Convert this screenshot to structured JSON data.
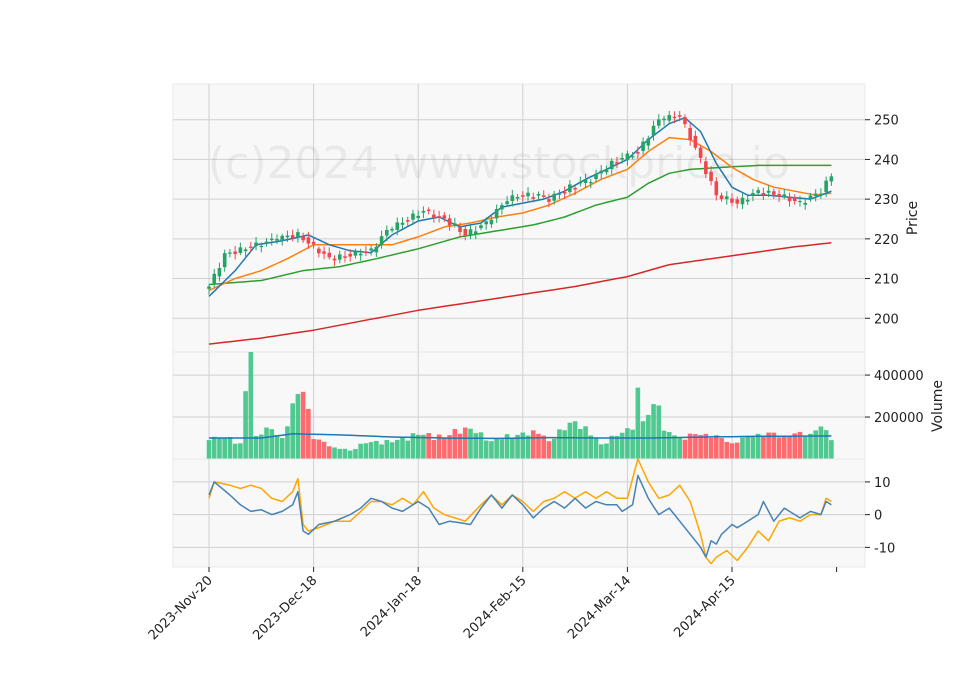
{
  "chart_data": {
    "type": "candlestick",
    "watermark": "(c)2024 www.stockprice.io",
    "x_tick_labels": [
      "2023-Nov-20",
      "2023-Dec-18",
      "2024-Jan-18",
      "2024-Feb-15",
      "2024-Mar-14",
      "2024-Apr-15"
    ],
    "x_tick_index": [
      0,
      20,
      40,
      60,
      80,
      100
    ],
    "num_bars": 120,
    "grid": true,
    "colors": {
      "up": "#26a269",
      "down": "#f0474e",
      "ma_short": "#1f77b4",
      "ma_mid": "#ff7f0e",
      "ma_long": "#2ca02c",
      "ma_200": "#d62728",
      "volume_ma": "#1f77b4",
      "osc_fast": "#4682b4",
      "osc_slow": "#ffa500",
      "panel_bg": "#f8f8f8",
      "grid": "#d0d0d0"
    },
    "price_panel": {
      "ylabel": "Price",
      "ylim": [
        191.5,
        259
      ],
      "yticks": [
        200,
        210,
        220,
        230,
        240,
        250
      ],
      "anchors": {
        "close": [
          [
            0,
            208
          ],
          [
            3,
            216
          ],
          [
            8,
            218
          ],
          [
            13,
            220
          ],
          [
            17,
            221
          ],
          [
            20,
            218
          ],
          [
            23,
            215
          ],
          [
            27,
            216
          ],
          [
            31,
            217
          ],
          [
            34,
            222
          ],
          [
            38,
            225
          ],
          [
            41,
            227
          ],
          [
            45,
            225
          ],
          [
            49,
            221
          ],
          [
            53,
            224
          ],
          [
            57,
            230
          ],
          [
            61,
            231
          ],
          [
            65,
            230
          ],
          [
            69,
            233
          ],
          [
            73,
            235
          ],
          [
            77,
            239
          ],
          [
            82,
            242
          ],
          [
            86,
            250
          ],
          [
            90,
            251
          ],
          [
            94,
            240
          ],
          [
            97,
            231
          ],
          [
            101,
            229
          ],
          [
            105,
            232
          ],
          [
            109,
            231
          ],
          [
            113,
            229
          ],
          [
            117,
            232
          ],
          [
            119,
            236
          ]
        ],
        "ma_short": [
          [
            0,
            205.5
          ],
          [
            5,
            212
          ],
          [
            9,
            218.5
          ],
          [
            14,
            219.5
          ],
          [
            19,
            221
          ],
          [
            23,
            218.5
          ],
          [
            27,
            217
          ],
          [
            31,
            216.5
          ],
          [
            35,
            221
          ],
          [
            40,
            224.5
          ],
          [
            44,
            225.5
          ],
          [
            48,
            223
          ],
          [
            52,
            224
          ],
          [
            56,
            228
          ],
          [
            60,
            229
          ],
          [
            64,
            230
          ],
          [
            68,
            232
          ],
          [
            72,
            235
          ],
          [
            76,
            237.5
          ],
          [
            80,
            240
          ],
          [
            84,
            245
          ],
          [
            88,
            249
          ],
          [
            91,
            250.5
          ],
          [
            94,
            247
          ],
          [
            97,
            239
          ],
          [
            100,
            233
          ],
          [
            103,
            231
          ],
          [
            107,
            231
          ],
          [
            111,
            230.5
          ],
          [
            115,
            230
          ],
          [
            119,
            232
          ]
        ],
        "ma_mid": [
          [
            0,
            207
          ],
          [
            5,
            210
          ],
          [
            10,
            212
          ],
          [
            15,
            215
          ],
          [
            20,
            218.5
          ],
          [
            25,
            218.5
          ],
          [
            30,
            218.5
          ],
          [
            35,
            218.5
          ],
          [
            40,
            220.5
          ],
          [
            45,
            223
          ],
          [
            50,
            224
          ],
          [
            55,
            225.5
          ],
          [
            60,
            226.5
          ],
          [
            65,
            228.5
          ],
          [
            70,
            231.5
          ],
          [
            75,
            235
          ],
          [
            80,
            237.5
          ],
          [
            84,
            242
          ],
          [
            88,
            245.5
          ],
          [
            92,
            245
          ],
          [
            96,
            242
          ],
          [
            100,
            238
          ],
          [
            104,
            235
          ],
          [
            108,
            233
          ],
          [
            112,
            232
          ],
          [
            116,
            231
          ],
          [
            119,
            231.5
          ]
        ],
        "ma_long": [
          [
            0,
            208.5
          ],
          [
            10,
            209.5
          ],
          [
            18,
            212
          ],
          [
            25,
            213
          ],
          [
            32,
            215
          ],
          [
            40,
            217.5
          ],
          [
            48,
            220.5
          ],
          [
            55,
            222
          ],
          [
            62,
            223.5
          ],
          [
            68,
            225.5
          ],
          [
            74,
            228.5
          ],
          [
            80,
            230.5
          ],
          [
            84,
            234
          ],
          [
            88,
            236.5
          ],
          [
            92,
            237.5
          ],
          [
            98,
            238
          ],
          [
            105,
            238.5
          ],
          [
            112,
            238.5
          ],
          [
            119,
            238.5
          ]
        ],
        "ma_200": [
          [
            0,
            193.5
          ],
          [
            10,
            195
          ],
          [
            20,
            197
          ],
          [
            30,
            199.5
          ],
          [
            40,
            202
          ],
          [
            50,
            204
          ],
          [
            60,
            206
          ],
          [
            70,
            208
          ],
          [
            80,
            210.5
          ],
          [
            88,
            213.5
          ],
          [
            96,
            215
          ],
          [
            104,
            216.5
          ],
          [
            112,
            218
          ],
          [
            119,
            219
          ]
        ]
      }
    },
    "volume_panel": {
      "ylabel": "Volume",
      "ylim": [
        0,
        510000
      ],
      "yticks": [
        200000,
        400000
      ],
      "ytick_labels": [
        "200000",
        "400000"
      ],
      "anchors": {
        "volume": [
          [
            0,
            90000
          ],
          [
            3,
            100000
          ],
          [
            6,
            75000
          ],
          [
            8,
            540000
          ],
          [
            9,
            110000
          ],
          [
            11,
            150000
          ],
          [
            14,
            100000
          ],
          [
            17,
            310000
          ],
          [
            18,
            320000
          ],
          [
            20,
            95000
          ],
          [
            24,
            55000
          ],
          [
            27,
            40000
          ],
          [
            30,
            75000
          ],
          [
            35,
            80000
          ],
          [
            40,
            115000
          ],
          [
            45,
            100000
          ],
          [
            49,
            150000
          ],
          [
            54,
            85000
          ],
          [
            59,
            115000
          ],
          [
            63,
            120000
          ],
          [
            65,
            85000
          ],
          [
            70,
            180000
          ],
          [
            75,
            70000
          ],
          [
            78,
            110000
          ],
          [
            81,
            140000
          ],
          [
            82,
            340000
          ],
          [
            83,
            180000
          ],
          [
            86,
            255000
          ],
          [
            87,
            135000
          ],
          [
            90,
            100000
          ],
          [
            95,
            120000
          ],
          [
            100,
            75000
          ],
          [
            105,
            120000
          ],
          [
            110,
            110000
          ],
          [
            115,
            120000
          ],
          [
            117,
            155000
          ],
          [
            119,
            90000
          ]
        ],
        "volume_ma": [
          [
            0,
            100000
          ],
          [
            10,
            100000
          ],
          [
            16,
            120000
          ],
          [
            25,
            115000
          ],
          [
            35,
            105000
          ],
          [
            45,
            100000
          ],
          [
            55,
            98000
          ],
          [
            65,
            102000
          ],
          [
            75,
            100000
          ],
          [
            85,
            100000
          ],
          [
            95,
            105000
          ],
          [
            105,
            108000
          ],
          [
            119,
            110000
          ]
        ]
      }
    },
    "osc_panel": {
      "ylim": [
        -16,
        17
      ],
      "yticks": [
        -10,
        0,
        10
      ],
      "anchors": {
        "fast": [
          [
            0,
            6
          ],
          [
            1,
            10
          ],
          [
            4,
            6
          ],
          [
            6,
            3
          ],
          [
            8,
            1
          ],
          [
            10,
            1.5
          ],
          [
            12,
            0
          ],
          [
            14,
            1
          ],
          [
            16,
            3
          ],
          [
            17,
            7
          ],
          [
            18,
            -5
          ],
          [
            19,
            -6
          ],
          [
            21,
            -3
          ],
          [
            24,
            -2
          ],
          [
            27,
            0
          ],
          [
            29,
            2
          ],
          [
            31,
            5
          ],
          [
            33,
            4
          ],
          [
            35,
            2
          ],
          [
            37,
            1
          ],
          [
            40,
            4
          ],
          [
            42,
            2
          ],
          [
            44,
            -3
          ],
          [
            46,
            -2
          ],
          [
            48,
            -2.5
          ],
          [
            50,
            -3
          ],
          [
            52,
            2
          ],
          [
            54,
            6
          ],
          [
            56,
            2
          ],
          [
            58,
            6
          ],
          [
            60,
            3
          ],
          [
            62,
            -1
          ],
          [
            64,
            2
          ],
          [
            66,
            4
          ],
          [
            68,
            2
          ],
          [
            70,
            5
          ],
          [
            72,
            2
          ],
          [
            74,
            4
          ],
          [
            76,
            3
          ],
          [
            78,
            3
          ],
          [
            79,
            1
          ],
          [
            81,
            3
          ],
          [
            82,
            12
          ],
          [
            84,
            5
          ],
          [
            86,
            0
          ],
          [
            88,
            2
          ],
          [
            90,
            -2
          ],
          [
            92,
            -6
          ],
          [
            94,
            -10
          ],
          [
            95,
            -13
          ],
          [
            96,
            -8
          ],
          [
            97,
            -9
          ],
          [
            98,
            -6
          ],
          [
            100,
            -3
          ],
          [
            101,
            -4
          ],
          [
            103,
            -2
          ],
          [
            105,
            0
          ],
          [
            106,
            4
          ],
          [
            108,
            -2
          ],
          [
            110,
            2
          ],
          [
            112,
            0
          ],
          [
            113,
            -1
          ],
          [
            115,
            1
          ],
          [
            117,
            0
          ],
          [
            118,
            4
          ],
          [
            119,
            3
          ]
        ],
        "slow": [
          [
            0,
            5
          ],
          [
            1,
            10
          ],
          [
            4,
            9
          ],
          [
            6,
            8
          ],
          [
            8,
            9
          ],
          [
            10,
            8
          ],
          [
            12,
            5
          ],
          [
            14,
            4
          ],
          [
            16,
            7
          ],
          [
            17,
            11
          ],
          [
            18,
            -3
          ],
          [
            19,
            -5
          ],
          [
            21,
            -4
          ],
          [
            24,
            -2
          ],
          [
            27,
            -2
          ],
          [
            29,
            1
          ],
          [
            31,
            4
          ],
          [
            33,
            4
          ],
          [
            35,
            3
          ],
          [
            37,
            5
          ],
          [
            39,
            3
          ],
          [
            41,
            7
          ],
          [
            43,
            2
          ],
          [
            45,
            0
          ],
          [
            47,
            -1
          ],
          [
            49,
            -2
          ],
          [
            52,
            3
          ],
          [
            54,
            6
          ],
          [
            56,
            3
          ],
          [
            58,
            6
          ],
          [
            60,
            4
          ],
          [
            62,
            1
          ],
          [
            64,
            4
          ],
          [
            66,
            5
          ],
          [
            68,
            7
          ],
          [
            70,
            5
          ],
          [
            72,
            7
          ],
          [
            74,
            5
          ],
          [
            76,
            7
          ],
          [
            78,
            5
          ],
          [
            80,
            5
          ],
          [
            82,
            17
          ],
          [
            84,
            10
          ],
          [
            86,
            5
          ],
          [
            88,
            6
          ],
          [
            90,
            9
          ],
          [
            92,
            4
          ],
          [
            94,
            -6
          ],
          [
            95,
            -13
          ],
          [
            96,
            -15
          ],
          [
            97,
            -13
          ],
          [
            99,
            -11
          ],
          [
            101,
            -14
          ],
          [
            103,
            -10
          ],
          [
            105,
            -5
          ],
          [
            107,
            -8
          ],
          [
            109,
            -2
          ],
          [
            111,
            -1
          ],
          [
            113,
            -2
          ],
          [
            115,
            0
          ],
          [
            117,
            0
          ],
          [
            118,
            5
          ],
          [
            119,
            4
          ]
        ]
      }
    }
  }
}
